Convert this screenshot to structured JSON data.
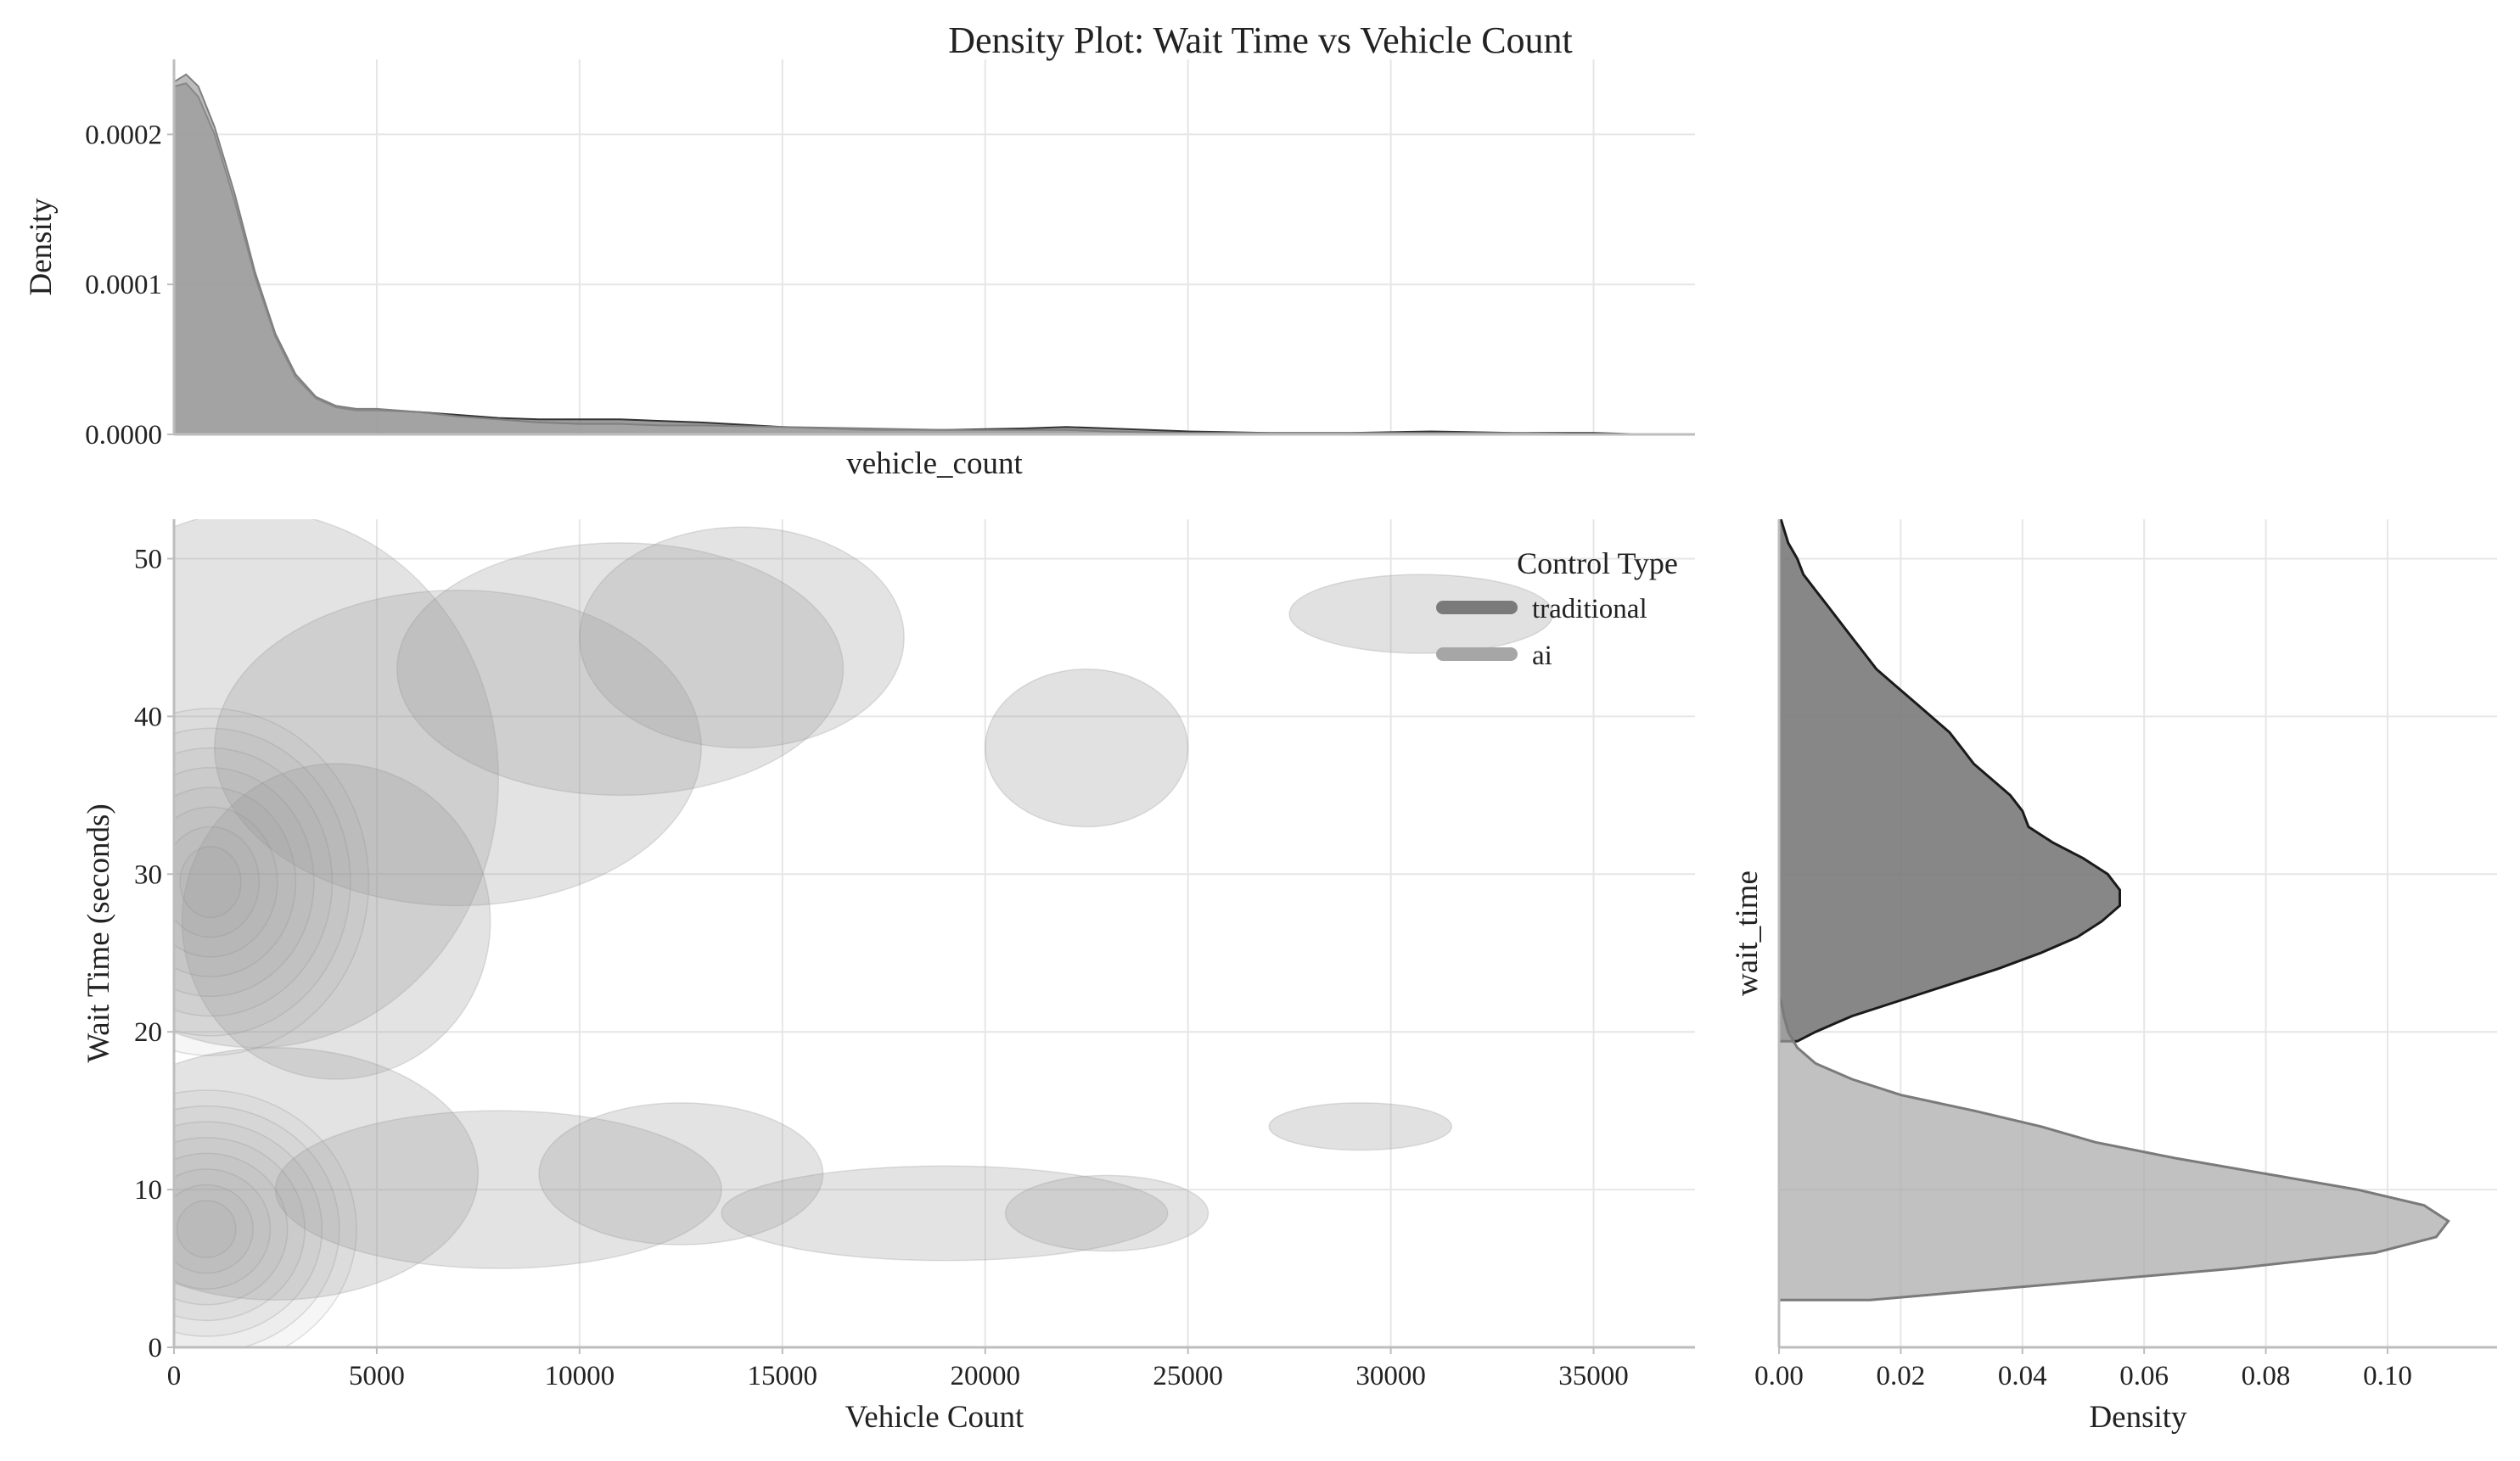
{
  "chart_data": [
    {
      "type": "area",
      "panel": "top-marginal",
      "title": "Density Plot: Wait Time vs Vehicle Count",
      "xlabel": "vehicle_count",
      "ylabel": "Density",
      "xlim": [
        0,
        37500
      ],
      "ylim": [
        0,
        0.00025
      ],
      "yticks": [
        "0.0000",
        "0.0001",
        "0.0002"
      ],
      "ytick_values": [
        0,
        0.0001,
        0.0002
      ],
      "grid": true,
      "series": [
        {
          "name": "traditional",
          "color": "#7a7a7a",
          "x": [
            0,
            300,
            600,
            1000,
            1500,
            2000,
            2500,
            3000,
            3500,
            4000,
            4500,
            5000,
            6000,
            7000,
            8000,
            9000,
            10000,
            11000,
            12000,
            13000,
            15000,
            17000,
            19000,
            21000,
            22000,
            23000,
            25000,
            27000,
            29000,
            31000,
            33000,
            35000,
            36300
          ],
          "y": [
            0.000232,
            0.000234,
            0.000225,
            0.0002,
            0.000155,
            0.000105,
            6.5e-05,
            3.8e-05,
            2.4e-05,
            1.8e-05,
            1.6e-05,
            1.6e-05,
            1.5e-05,
            1.3e-05,
            1.1e-05,
            1e-05,
            1e-05,
            1e-05,
            9e-06,
            8e-06,
            5e-06,
            3e-06,
            3e-06,
            4e-06,
            5e-06,
            4e-06,
            2e-06,
            1e-06,
            1e-06,
            2e-06,
            1e-06,
            1e-06,
            0
          ]
        },
        {
          "name": "ai",
          "color": "#a6a6a6",
          "x": [
            0,
            300,
            600,
            1000,
            1500,
            2000,
            2500,
            3000,
            3500,
            4000,
            4500,
            5000,
            6000,
            7000,
            8000,
            9000,
            10000,
            11000,
            12000,
            13000,
            15000,
            17000,
            19000,
            21000,
            22000,
            23000,
            25000,
            27000,
            29000,
            31000,
            33000,
            35000,
            36300
          ],
          "y": [
            0.000235,
            0.00024,
            0.000232,
            0.000205,
            0.00016,
            0.000108,
            6.7e-05,
            4e-05,
            2.5e-05,
            1.9e-05,
            1.7e-05,
            1.7e-05,
            1.5e-05,
            1.2e-05,
            1e-05,
            8e-06,
            7e-06,
            7e-06,
            6e-06,
            6e-06,
            5e-06,
            4e-06,
            3e-06,
            3e-06,
            3e-06,
            2e-06,
            1e-06,
            1e-06,
            1e-06,
            1e-06,
            1e-06,
            0,
            0
          ]
        }
      ]
    },
    {
      "type": "heatmap",
      "panel": "joint-kde",
      "xlabel": "Vehicle Count",
      "ylabel": "Wait Time (seconds)",
      "xlim": [
        0,
        37500
      ],
      "ylim": [
        0,
        52.5
      ],
      "xticks": [
        "0",
        "5000",
        "10000",
        "15000",
        "20000",
        "25000",
        "30000",
        "35000"
      ],
      "xtick_values": [
        0,
        5000,
        10000,
        15000,
        20000,
        25000,
        30000,
        35000
      ],
      "yticks": [
        "0",
        "10",
        "20",
        "30",
        "40",
        "50"
      ],
      "ytick_values": [
        0,
        10,
        20,
        30,
        40,
        50
      ],
      "grid": true,
      "legend": {
        "title": "Control Type",
        "placement": "top-right",
        "entries": [
          {
            "label": "traditional",
            "color": "#7a7a7a"
          },
          {
            "label": "ai",
            "color": "#a6a6a6"
          }
        ]
      },
      "series": [
        {
          "name": "traditional",
          "color": "#7a7a7a",
          "peak": {
            "x": 600,
            "y": 29.5
          },
          "levels": 8,
          "clusters": [
            {
              "x": [
                20000,
                25000
              ],
              "y": [
                33,
                43
              ]
            },
            {
              "x": [
                27500,
                34000
              ],
              "y": [
                44,
                49
              ]
            }
          ]
        },
        {
          "name": "ai",
          "color": "#a6a6a6",
          "peak": {
            "x": 500,
            "y": 7.5
          },
          "levels": 8,
          "clusters": [
            {
              "x": [
                27000,
                31500
              ],
              "y": [
                12.5,
                15.5
              ]
            }
          ]
        }
      ]
    },
    {
      "type": "area",
      "panel": "right-marginal",
      "xlabel": "Density",
      "ylabel": "wait_time",
      "xlim": [
        0,
        0.118
      ],
      "xticks": [
        "0.00",
        "0.02",
        "0.04",
        "0.06",
        "0.08",
        "0.10"
      ],
      "xtick_values": [
        0,
        0.02,
        0.04,
        0.06,
        0.08,
        0.1
      ],
      "grid": true,
      "series": [
        {
          "name": "traditional",
          "color": "#7a7a7a",
          "y": [
            19.4,
            20,
            21,
            22,
            23,
            24,
            25,
            26,
            27,
            28,
            29,
            30,
            31,
            32,
            33,
            34,
            35,
            36,
            37,
            38,
            39,
            40,
            41,
            42,
            43,
            44,
            45,
            46,
            47,
            48,
            49,
            50,
            51,
            52.5
          ],
          "density": [
            0.003,
            0.006,
            0.012,
            0.02,
            0.028,
            0.036,
            0.043,
            0.049,
            0.053,
            0.056,
            0.056,
            0.054,
            0.05,
            0.045,
            0.041,
            0.04,
            0.038,
            0.035,
            0.032,
            0.03,
            0.028,
            0.025,
            0.022,
            0.019,
            0.016,
            0.014,
            0.012,
            0.01,
            0.008,
            0.006,
            0.004,
            0.003,
            0.0015,
            0.0003
          ]
        },
        {
          "name": "ai",
          "color": "#a6a6a6",
          "y": [
            3,
            4,
            5,
            6,
            7,
            8,
            9,
            10,
            11,
            12,
            13,
            14,
            15,
            16,
            17,
            18,
            19,
            20,
            21,
            22
          ],
          "density": [
            0.015,
            0.045,
            0.075,
            0.098,
            0.108,
            0.11,
            0.106,
            0.095,
            0.08,
            0.065,
            0.052,
            0.043,
            0.032,
            0.02,
            0.012,
            0.006,
            0.003,
            0.0015,
            0.0008,
            0.0003
          ]
        }
      ]
    }
  ]
}
